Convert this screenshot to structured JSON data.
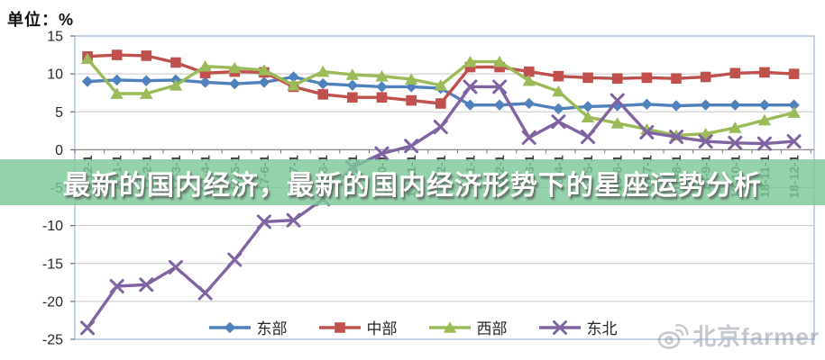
{
  "unit_label": "单位：%",
  "banner": {
    "title": "最新的国内经济，最新的国内经济形势下的星座运势分析",
    "bg_color": "#7cc898",
    "bg_opacity": 0.82
  },
  "watermark": {
    "text": "北京farmer",
    "icon": "weibo-eye-icon"
  },
  "chart_data": {
    "type": "line",
    "title": "",
    "xlabel": "",
    "ylabel": "单位：%",
    "ylim": [
      -25,
      15
    ],
    "yticks": [
      15,
      10,
      5,
      0,
      -5,
      -10,
      -15,
      -20,
      -25
    ],
    "grid": true,
    "legend_position": "bottom",
    "categories": [
      "16-12-1",
      "17-1-1",
      "17-2-1",
      "17-3-1",
      "17-4-1",
      "17-5-1",
      "17-6-1",
      "17-7-1",
      "17-8-1",
      "17-9-1",
      "17-10-1",
      "17-11-1",
      "17-12-1",
      "18-1-1",
      "18-2-1",
      "18-3-1",
      "18-4-1",
      "18-5-1",
      "18-6-1",
      "18-7-1",
      "18-8-1",
      "18-9-1",
      "18-10-1",
      "18-11-1",
      "18-12-1"
    ],
    "series": [
      {
        "name": "东部",
        "marker": "diamond",
        "color": "#4F81BD",
        "values": [
          9.0,
          9.2,
          9.1,
          9.2,
          8.9,
          8.7,
          8.9,
          9.6,
          8.7,
          8.5,
          8.3,
          8.3,
          8.1,
          5.9,
          5.9,
          6.1,
          5.4,
          5.7,
          5.8,
          6.0,
          5.8,
          5.9,
          5.9,
          5.9,
          5.9
        ]
      },
      {
        "name": "中部",
        "marker": "square",
        "color": "#C0504D",
        "values": [
          12.3,
          12.5,
          12.4,
          11.5,
          10.1,
          10.3,
          10.2,
          8.3,
          7.3,
          6.9,
          6.9,
          6.5,
          6.1,
          10.9,
          10.9,
          10.3,
          9.7,
          9.5,
          9.4,
          9.5,
          9.4,
          9.6,
          10.1,
          10.2,
          10.0
        ]
      },
      {
        "name": "西部",
        "marker": "triangle",
        "color": "#9BBB59",
        "values": [
          12.0,
          7.4,
          7.4,
          8.5,
          11.0,
          10.8,
          10.5,
          8.5,
          10.3,
          9.9,
          9.7,
          9.3,
          8.5,
          11.6,
          11.6,
          9.1,
          7.7,
          4.3,
          3.5,
          2.7,
          1.9,
          2.1,
          2.9,
          3.9,
          4.9
        ]
      },
      {
        "name": "东北",
        "marker": "x",
        "color": "#8064A2",
        "values": [
          -23.5,
          -18.0,
          -17.8,
          -15.5,
          -18.9,
          -14.5,
          -9.5,
          -9.3,
          -6.5,
          -2.3,
          -0.5,
          0.5,
          3.0,
          8.3,
          8.3,
          1.6,
          3.7,
          1.7,
          6.5,
          2.3,
          1.7,
          1.1,
          0.9,
          0.8,
          1.1
        ]
      }
    ]
  }
}
